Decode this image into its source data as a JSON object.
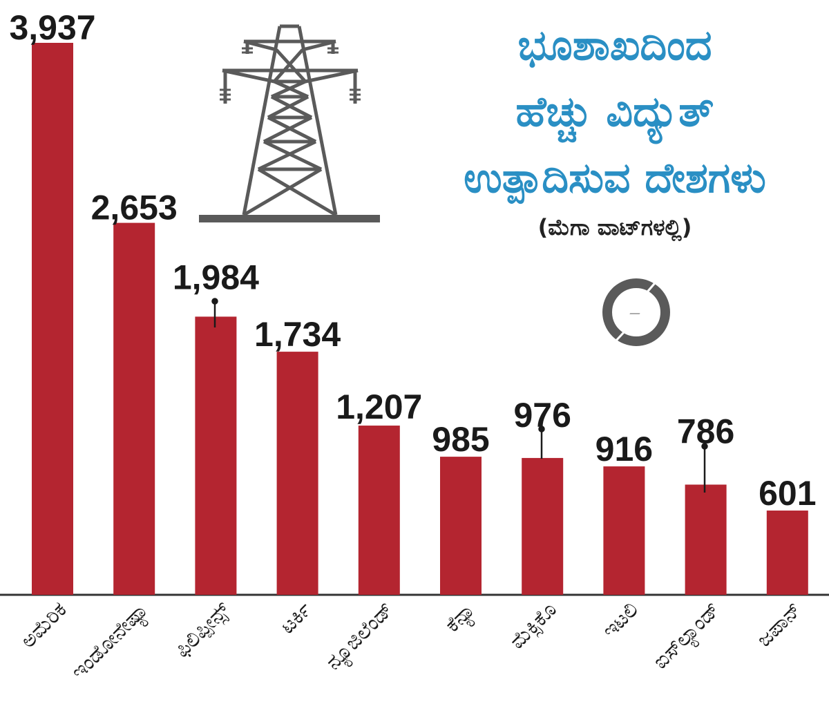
{
  "title_lines": [
    "ಭೂಶಾಖದಿಂದ",
    "ಹೆಚ್ಚು ವಿದ್ಯುತ್",
    "ಉತ್ಪಾದಿಸುವ ದೇಶಗಳು"
  ],
  "subtitle": "(ಮೆಗಾ ವಾಟ್‌ಗಳಲ್ಲಿ)",
  "icons": [
    "power-tower-icon",
    "lightning-bolt-icon"
  ],
  "colors": {
    "bar": "#b42530",
    "title": "#2a8fc4",
    "baseline": "#333333",
    "icon": "#5a5a5a"
  },
  "chart_data": {
    "type": "bar",
    "categories": [
      "ಅಮೆರಿಕ",
      "ಇಂಡೋನೇಷ್ಯಾ",
      "ಫಿಲಿಪ್ಪೀನ್ಸ್",
      "ಟರ್ಕಿ",
      "ನ್ಯೂಜಿಲೆಂಡ್",
      "ಕೆನ್ಯಾ",
      "ಮೆಕ್ಸಿಕೊ",
      "ಇಟಲಿ",
      "ಐಸ್‌ಲ್ಯಾಂಡ್",
      "ಜಪಾನ್"
    ],
    "values": [
      3937,
      2653,
      1984,
      1734,
      1207,
      985,
      976,
      916,
      786,
      601
    ],
    "value_labels": [
      "3,937",
      "2,653",
      "1,984",
      "1,734",
      "1,207",
      "985",
      "976",
      "916",
      "786",
      "601"
    ],
    "ylim": [
      0,
      3937
    ],
    "grid": false,
    "legend": "none"
  }
}
